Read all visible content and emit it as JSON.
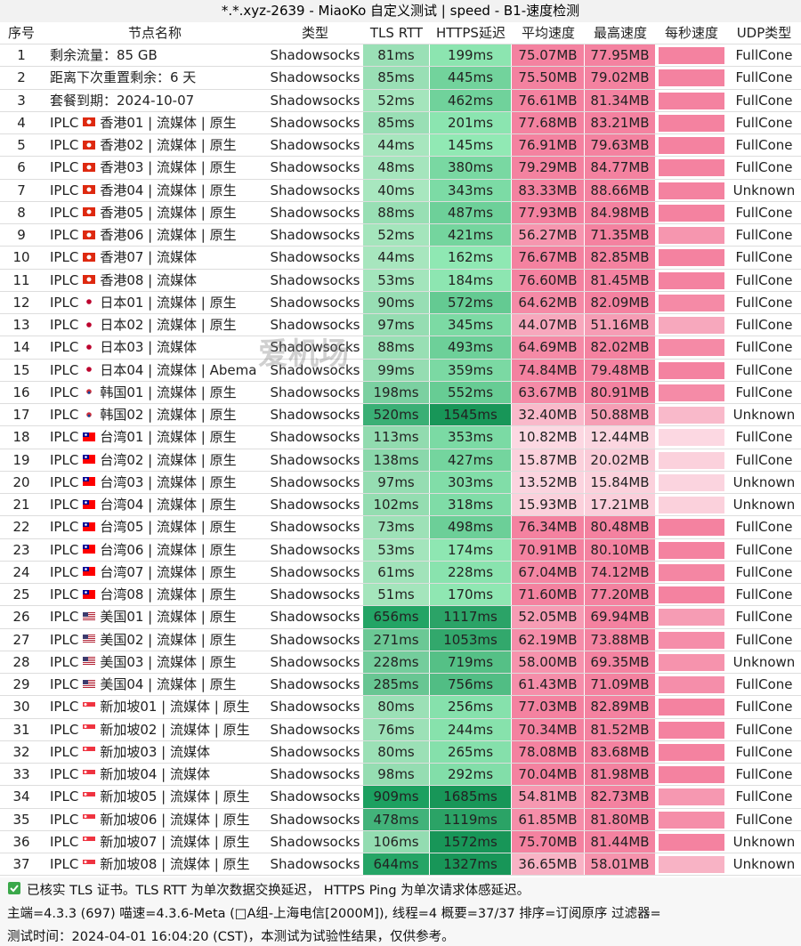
{
  "header": {
    "title": "*.*.xyz-2639 - MiaoKo 自定义测试 | speed - B1-速度检测"
  },
  "table": {
    "columns": [
      "序号",
      "节点名称",
      "类型",
      "TLS RTT",
      "HTTPS延迟",
      "平均速度",
      "最高速度",
      "每秒速度",
      "UDP类型"
    ],
    "rows": [
      {
        "cells": [
          "1",
          "剩余流量：85 GB",
          "Shadowsocks",
          "81ms",
          "199ms",
          "75.07MB",
          "77.95MB",
          "FullCone"
        ]
      },
      {
        "cells": [
          "2",
          "距离下次重置剩余：6 天",
          "Shadowsocks",
          "85ms",
          "445ms",
          "75.50MB",
          "79.02MB",
          "FullCone"
        ]
      },
      {
        "cells": [
          "3",
          "套餐到期：2024-10-07",
          "Shadowsocks",
          "52ms",
          "462ms",
          "76.61MB",
          "81.34MB",
          "FullCone"
        ]
      },
      {
        "prefix": "IPLC",
        "flag": "hk",
        "cells": [
          "4",
          "香港01 | 流媒体 | 原生",
          "Shadowsocks",
          "85ms",
          "201ms",
          "77.68MB",
          "83.21MB",
          "FullCone"
        ]
      },
      {
        "prefix": "IPLC",
        "flag": "hk",
        "cells": [
          "5",
          "香港02 | 流媒体 | 原生",
          "Shadowsocks",
          "44ms",
          "145ms",
          "76.91MB",
          "79.63MB",
          "FullCone"
        ]
      },
      {
        "prefix": "IPLC",
        "flag": "hk",
        "cells": [
          "6",
          "香港03 | 流媒体 | 原生",
          "Shadowsocks",
          "48ms",
          "380ms",
          "79.29MB",
          "84.77MB",
          "FullCone"
        ]
      },
      {
        "prefix": "IPLC",
        "flag": "hk",
        "cells": [
          "7",
          "香港04 | 流媒体 | 原生",
          "Shadowsocks",
          "40ms",
          "343ms",
          "83.33MB",
          "88.66MB",
          "Unknown"
        ]
      },
      {
        "prefix": "IPLC",
        "flag": "hk",
        "cells": [
          "8",
          "香港05 | 流媒体 | 原生",
          "Shadowsocks",
          "88ms",
          "487ms",
          "77.93MB",
          "84.98MB",
          "FullCone"
        ]
      },
      {
        "prefix": "IPLC",
        "flag": "hk",
        "cells": [
          "9",
          "香港06 | 流媒体 | 原生",
          "Shadowsocks",
          "52ms",
          "421ms",
          "56.27MB",
          "71.35MB",
          "FullCone"
        ]
      },
      {
        "prefix": "IPLC",
        "flag": "hk",
        "cells": [
          "10",
          "香港07 | 流媒体",
          "Shadowsocks",
          "44ms",
          "162ms",
          "76.67MB",
          "82.85MB",
          "FullCone"
        ]
      },
      {
        "prefix": "IPLC",
        "flag": "hk",
        "cells": [
          "11",
          "香港08 | 流媒体",
          "Shadowsocks",
          "53ms",
          "184ms",
          "76.60MB",
          "81.45MB",
          "FullCone"
        ]
      },
      {
        "prefix": "IPLC",
        "flag": "jp",
        "cells": [
          "12",
          "日本01 | 流媒体 | 原生",
          "Shadowsocks",
          "90ms",
          "572ms",
          "64.62MB",
          "82.09MB",
          "FullCone"
        ]
      },
      {
        "prefix": "IPLC",
        "flag": "jp",
        "cells": [
          "13",
          "日本02 | 流媒体 | 原生",
          "Shadowsocks",
          "97ms",
          "345ms",
          "44.07MB",
          "51.16MB",
          "FullCone"
        ]
      },
      {
        "prefix": "IPLC",
        "flag": "jp",
        "cells": [
          "14",
          "日本03 | 流媒体",
          "Shadowsocks",
          "88ms",
          "493ms",
          "64.69MB",
          "82.02MB",
          "FullCone"
        ]
      },
      {
        "prefix": "IPLC",
        "flag": "jp",
        "cells": [
          "15",
          "日本04 | 流媒体 | Abema",
          "Shadowsocks",
          "99ms",
          "359ms",
          "74.84MB",
          "79.48MB",
          "FullCone"
        ]
      },
      {
        "prefix": "IPLC",
        "flag": "kr",
        "cells": [
          "16",
          "韩国01 | 流媒体 | 原生",
          "Shadowsocks",
          "198ms",
          "552ms",
          "63.67MB",
          "80.91MB",
          "FullCone"
        ]
      },
      {
        "prefix": "IPLC",
        "flag": "kr",
        "cells": [
          "17",
          "韩国02 | 流媒体 | 原生",
          "Shadowsocks",
          "520ms",
          "1545ms",
          "32.40MB",
          "50.88MB",
          "Unknown"
        ]
      },
      {
        "prefix": "IPLC",
        "flag": "tw",
        "cells": [
          "18",
          "台湾01 | 流媒体 | 原生",
          "Shadowsocks",
          "113ms",
          "353ms",
          "10.82MB",
          "12.44MB",
          "FullCone"
        ]
      },
      {
        "prefix": "IPLC",
        "flag": "tw",
        "cells": [
          "19",
          "台湾02 | 流媒体 | 原生",
          "Shadowsocks",
          "138ms",
          "427ms",
          "15.87MB",
          "20.02MB",
          "FullCone"
        ]
      },
      {
        "prefix": "IPLC",
        "flag": "tw",
        "cells": [
          "20",
          "台湾03 | 流媒体 | 原生",
          "Shadowsocks",
          "97ms",
          "303ms",
          "13.52MB",
          "15.84MB",
          "Unknown"
        ]
      },
      {
        "prefix": "IPLC",
        "flag": "tw",
        "cells": [
          "21",
          "台湾04 | 流媒体 | 原生",
          "Shadowsocks",
          "102ms",
          "318ms",
          "15.93MB",
          "17.21MB",
          "Unknown"
        ]
      },
      {
        "prefix": "IPLC",
        "flag": "tw",
        "cells": [
          "22",
          "台湾05 | 流媒体 | 原生",
          "Shadowsocks",
          "73ms",
          "498ms",
          "76.34MB",
          "80.48MB",
          "FullCone"
        ]
      },
      {
        "prefix": "IPLC",
        "flag": "tw",
        "cells": [
          "23",
          "台湾06 | 流媒体 | 原生",
          "Shadowsocks",
          "53ms",
          "174ms",
          "70.91MB",
          "80.10MB",
          "FullCone"
        ]
      },
      {
        "prefix": "IPLC",
        "flag": "tw",
        "cells": [
          "24",
          "台湾07 | 流媒体 | 原生",
          "Shadowsocks",
          "61ms",
          "228ms",
          "67.04MB",
          "74.12MB",
          "FullCone"
        ]
      },
      {
        "prefix": "IPLC",
        "flag": "tw",
        "cells": [
          "25",
          "台湾08 | 流媒体 | 原生",
          "Shadowsocks",
          "51ms",
          "170ms",
          "71.60MB",
          "77.20MB",
          "FullCone"
        ]
      },
      {
        "prefix": "IPLC",
        "flag": "us",
        "cells": [
          "26",
          "美国01 | 流媒体 | 原生",
          "Shadowsocks",
          "656ms",
          "1117ms",
          "52.05MB",
          "69.94MB",
          "FullCone"
        ]
      },
      {
        "prefix": "IPLC",
        "flag": "us",
        "cells": [
          "27",
          "美国02 | 流媒体 | 原生",
          "Shadowsocks",
          "271ms",
          "1053ms",
          "62.19MB",
          "73.88MB",
          "FullCone"
        ]
      },
      {
        "prefix": "IPLC",
        "flag": "us",
        "cells": [
          "28",
          "美国03 | 流媒体 | 原生",
          "Shadowsocks",
          "228ms",
          "719ms",
          "58.00MB",
          "69.35MB",
          "Unknown"
        ]
      },
      {
        "prefix": "IPLC",
        "flag": "us",
        "cells": [
          "29",
          "美国04 | 流媒体 | 原生",
          "Shadowsocks",
          "285ms",
          "756ms",
          "61.43MB",
          "71.09MB",
          "FullCone"
        ]
      },
      {
        "prefix": "IPLC",
        "flag": "sg",
        "cells": [
          "30",
          "新加坡01 | 流媒体 | 原生",
          "Shadowsocks",
          "80ms",
          "256ms",
          "77.03MB",
          "82.89MB",
          "FullCone"
        ]
      },
      {
        "prefix": "IPLC",
        "flag": "sg",
        "cells": [
          "31",
          "新加坡02 | 流媒体 | 原生",
          "Shadowsocks",
          "76ms",
          "244ms",
          "70.34MB",
          "81.52MB",
          "FullCone"
        ]
      },
      {
        "prefix": "IPLC",
        "flag": "sg",
        "cells": [
          "32",
          "新加坡03 | 流媒体",
          "Shadowsocks",
          "80ms",
          "265ms",
          "78.08MB",
          "83.68MB",
          "FullCone"
        ]
      },
      {
        "prefix": "IPLC",
        "flag": "sg",
        "cells": [
          "33",
          "新加坡04 | 流媒体",
          "Shadowsocks",
          "98ms",
          "292ms",
          "70.04MB",
          "81.98MB",
          "FullCone"
        ]
      },
      {
        "prefix": "IPLC",
        "flag": "sg",
        "cells": [
          "34",
          "新加坡05 | 流媒体 | 原生",
          "Shadowsocks",
          "909ms",
          "1685ms",
          "54.81MB",
          "82.73MB",
          "FullCone"
        ]
      },
      {
        "prefix": "IPLC",
        "flag": "sg",
        "cells": [
          "35",
          "新加坡06 | 流媒体 | 原生",
          "Shadowsocks",
          "478ms",
          "1119ms",
          "61.85MB",
          "81.80MB",
          "FullCone"
        ]
      },
      {
        "prefix": "IPLC",
        "flag": "sg",
        "cells": [
          "36",
          "新加坡07 | 流媒体 | 原生",
          "Shadowsocks",
          "106ms",
          "1572ms",
          "75.70MB",
          "81.44MB",
          "Unknown"
        ]
      },
      {
        "prefix": "IPLC",
        "flag": "sg",
        "cells": [
          "37",
          "新加坡08 | 流媒体 | 原生",
          "Shadowsocks",
          "644ms",
          "1327ms",
          "36.65MB",
          "58.01MB",
          "Unknown"
        ]
      }
    ]
  },
  "watermark": "爱机场",
  "footer": [
    "已核实 TLS 证书。TLS RTT 为单次数据交换延迟， HTTPS Ping 为单次请求体感延迟。",
    "主端=4.3.3 (697) 喵速=4.3.6-Meta (□A组-上海电信[2000M]), 线程=4 概要=37/37 排序=订阅原序 过滤器=",
    "测试时间：2024-04-01 16:04:20 (CST)，本测试为试验性结果，仅供参考。"
  ]
}
